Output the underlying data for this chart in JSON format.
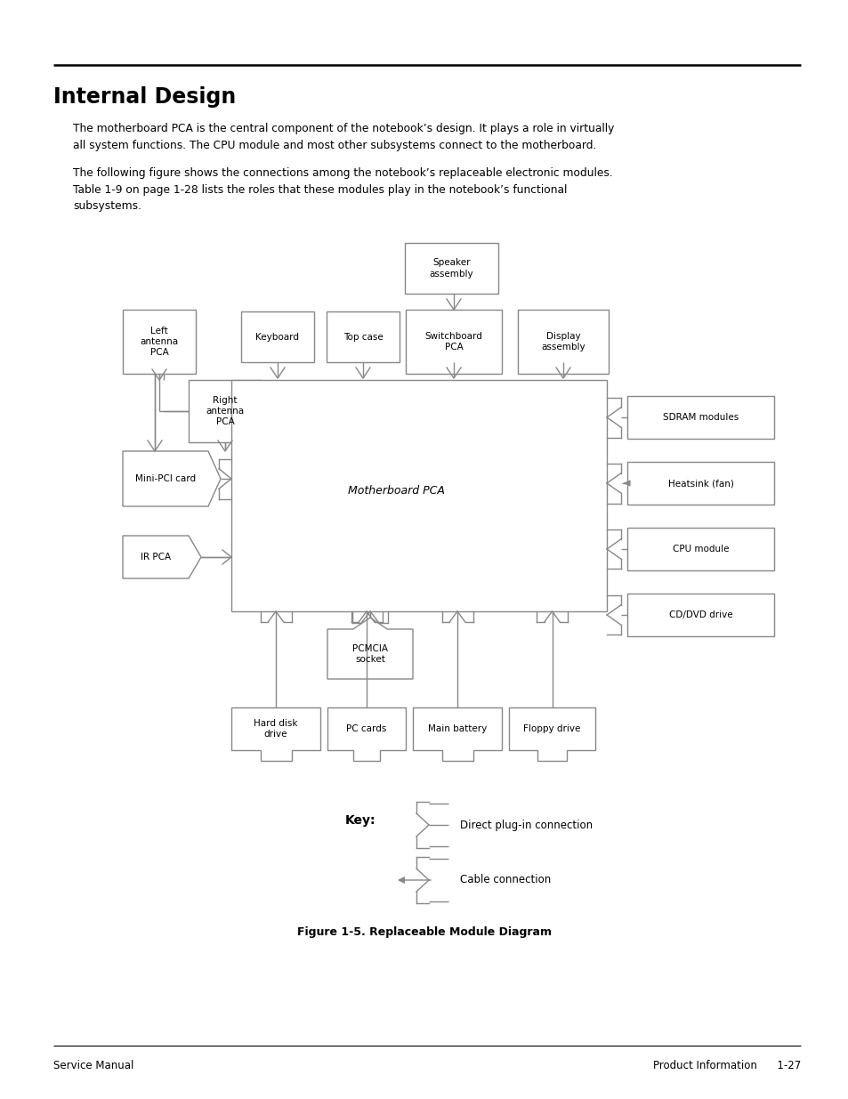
{
  "title": "Internal Design",
  "para1": "The motherboard PCA is the central component of the notebook’s design. It plays a role in virtually\nall system functions. The CPU module and most other subsystems connect to the motherboard.",
  "para2": "The following figure shows the connections among the notebook’s replaceable electronic modules.\nTable 1-9 on page 1-28 lists the roles that these modules play in the notebook’s functional\nsubsystems.",
  "fig_caption": "Figure 1-5. Replaceable Module Diagram",
  "footer_left": "Service Manual",
  "footer_right": "Product Information      1-27",
  "bg_color": "#ffffff",
  "line_color": "#555555",
  "box_fill": "#ffffff",
  "text_color": "#000000",
  "diagram_gray": "#888888"
}
